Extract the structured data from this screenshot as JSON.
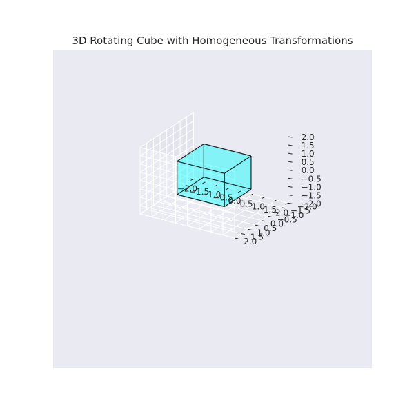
{
  "chart_data": {
    "type": "3d-wireframe",
    "title": "3D Rotating Cube with Homogeneous Transformations",
    "xlim": [
      -2,
      2
    ],
    "ylim": [
      -2,
      2
    ],
    "zlim": [
      -2,
      2
    ],
    "grid": true,
    "x_ticks": [
      "−2.0",
      "−1.5",
      "−1.0",
      "−0.5",
      "0.0",
      "0.5",
      "1.0",
      "1.5",
      "2.0"
    ],
    "y_ticks": [
      "−2.0",
      "−1.5",
      "−1.0",
      "−0.5",
      "0.0",
      "0.5",
      "1.0",
      "1.5",
      "2.0"
    ],
    "z_ticks": [
      "−2.0",
      "−1.5",
      "−1.0",
      "−0.5",
      "0.0",
      "0.5",
      "1.0",
      "1.5",
      "2.0"
    ],
    "cube": {
      "vertices": [
        [
          -1,
          -1,
          -1
        ],
        [
          1,
          -1,
          -1
        ],
        [
          1,
          1,
          -1
        ],
        [
          -1,
          1,
          -1
        ],
        [
          -1,
          -1,
          1
        ],
        [
          1,
          -1,
          1
        ],
        [
          1,
          1,
          1
        ],
        [
          -1,
          1,
          1
        ]
      ],
      "face_color": "#00ffff",
      "face_alpha": 0.25,
      "edge_color": "#000000"
    },
    "colors": {
      "pane": "#eaeaf2",
      "pane_side": "#e3e3ec",
      "pane_floor": "#e6e6ee",
      "grid": "#ffffff",
      "text": "#262626"
    }
  }
}
